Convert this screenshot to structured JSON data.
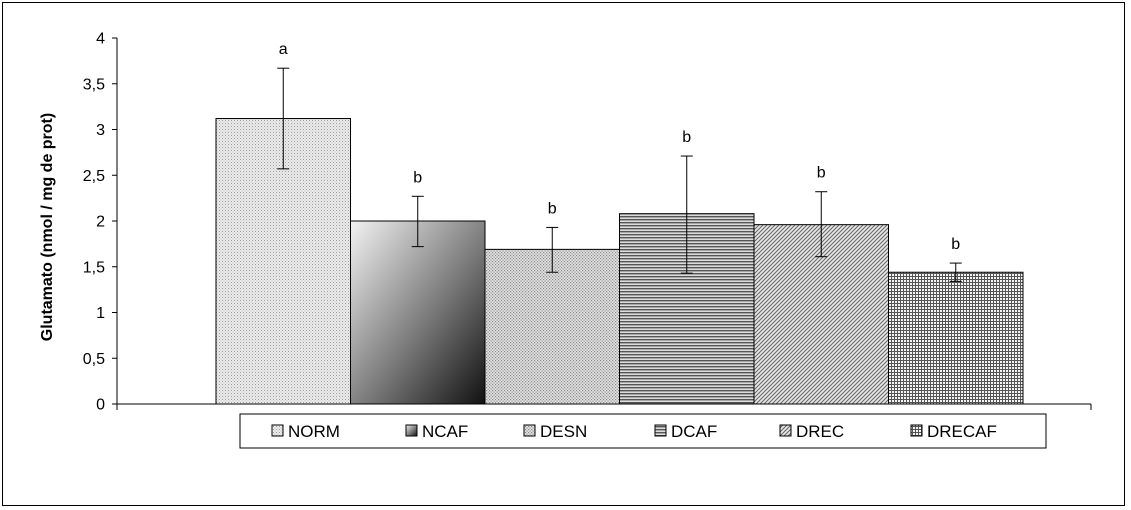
{
  "chart_data": {
    "type": "bar",
    "ylabel": "Glutamato (nmol / mg de prot)",
    "ylim": [
      0,
      4
    ],
    "yticks": [
      {
        "value": 0,
        "label": "0"
      },
      {
        "value": 0.5,
        "label": "0,5"
      },
      {
        "value": 1,
        "label": "1"
      },
      {
        "value": 1.5,
        "label": "1,5"
      },
      {
        "value": 2,
        "label": "2"
      },
      {
        "value": 2.5,
        "label": "2,5"
      },
      {
        "value": 3,
        "label": "3"
      },
      {
        "value": 3.5,
        "label": "3,5"
      },
      {
        "value": 4,
        "label": "4"
      }
    ],
    "legend_position": "bottom",
    "series": [
      {
        "name": "NORM",
        "value": 3.12,
        "error_low": 2.57,
        "error_high": 3.67,
        "annotation": "a",
        "fill": "dots-light"
      },
      {
        "name": "NCAF",
        "value": 2.0,
        "error_low": 1.72,
        "error_high": 2.27,
        "annotation": "b",
        "fill": "diagonal-gradient"
      },
      {
        "name": "DESN",
        "value": 1.69,
        "error_low": 1.44,
        "error_high": 1.93,
        "annotation": "b",
        "fill": "dots-medium"
      },
      {
        "name": "DCAF",
        "value": 2.08,
        "error_low": 1.43,
        "error_high": 2.71,
        "annotation": "b",
        "fill": "horizontal-lines"
      },
      {
        "name": "DREC",
        "value": 1.96,
        "error_low": 1.61,
        "error_high": 2.32,
        "annotation": "b",
        "fill": "diagonal-hatch"
      },
      {
        "name": "DRECAF",
        "value": 1.44,
        "error_low": 1.34,
        "error_high": 1.54,
        "annotation": "b",
        "fill": "grid"
      }
    ]
  }
}
